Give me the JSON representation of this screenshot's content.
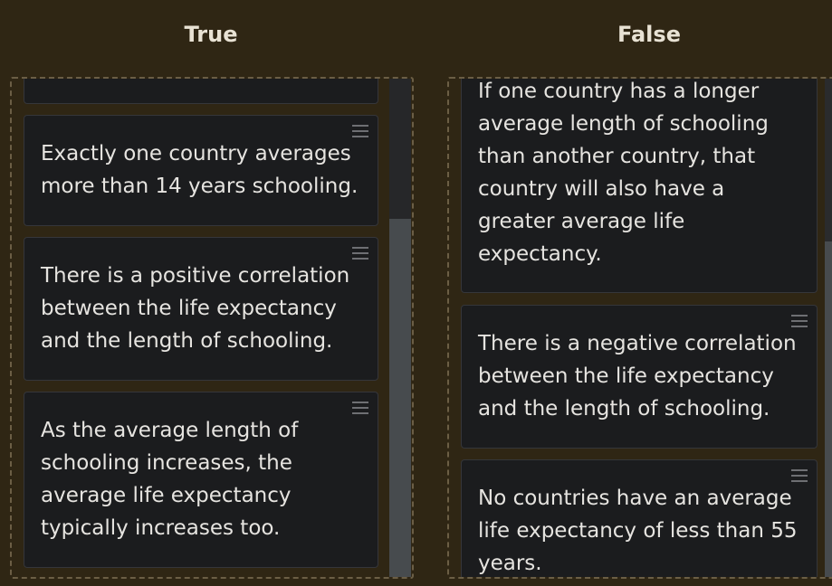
{
  "columns": {
    "true_title": "True",
    "false_title": "False"
  },
  "true_cards": [
    {
      "text": ""
    },
    {
      "text": "Exactly one country averages more than 14 years schooling."
    },
    {
      "text": "There is a positive correlation between the life expectancy and the length of schooling."
    },
    {
      "text": "As the average length of schooling increases, the average life expectancy typically increases too."
    }
  ],
  "false_cards": [
    {
      "text": "If one country has a longer average length of schooling than another country, that country will also have a greater average life expectancy."
    },
    {
      "text": "There is a negative correlation between the life expectancy and the length of schooling."
    },
    {
      "text": "No countries have an average life expectancy of less than 55 years."
    }
  ],
  "icons": {
    "drag_handle": "drag-handle-icon"
  },
  "colors": {
    "background": "#2f2614",
    "card": "#1b1c1e",
    "text": "#e6e4e0"
  }
}
